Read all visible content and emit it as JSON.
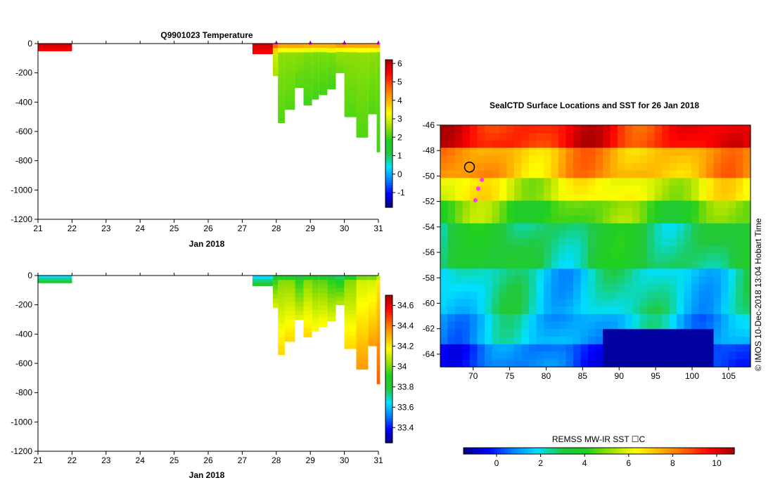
{
  "chart_data": [
    {
      "type": "heatmap",
      "title": "Q9901023  Temperature",
      "xlabel": "Jan 2018",
      "ylabel": "",
      "xlim": [
        21,
        31
      ],
      "ylim": [
        -1200,
        0
      ],
      "x_ticks": [
        "21",
        "22",
        "23",
        "24",
        "25",
        "26",
        "27",
        "28",
        "29",
        "30",
        "31"
      ],
      "y_ticks": [
        "0",
        "-200",
        "-400",
        "-600",
        "-800",
        "-1000",
        "-1200"
      ],
      "colorbar": {
        "min": -1.8,
        "max": 6.2,
        "ticks": [
          "6",
          "5",
          "4",
          "3",
          "2",
          "1",
          "0",
          "-1"
        ]
      },
      "profile_markers_x": [
        28.0,
        29.0,
        30.0,
        31.0
      ],
      "profiles": [
        {
          "x0": 21.0,
          "x1": 22.0,
          "max_depth": 50,
          "value": 5.8
        },
        {
          "x0": 27.3,
          "x1": 27.9,
          "max_depth": 70,
          "value": 5.8
        },
        {
          "x0": 27.9,
          "x1": 28.05,
          "max_depth": 220,
          "value": 3.0
        },
        {
          "x0": 28.05,
          "x1": 28.25,
          "max_depth": 540,
          "value": 2.5
        },
        {
          "x0": 28.25,
          "x1": 28.55,
          "max_depth": 450,
          "value": 2.5
        },
        {
          "x0": 28.55,
          "x1": 28.8,
          "max_depth": 300,
          "value": 2.5
        },
        {
          "x0": 28.8,
          "x1": 29.05,
          "max_depth": 420,
          "value": 2.4
        },
        {
          "x0": 29.05,
          "x1": 29.25,
          "max_depth": 380,
          "value": 2.4
        },
        {
          "x0": 29.25,
          "x1": 29.5,
          "max_depth": 350,
          "value": 2.4
        },
        {
          "x0": 29.5,
          "x1": 29.75,
          "max_depth": 310,
          "value": 2.4
        },
        {
          "x0": 29.75,
          "x1": 30.0,
          "max_depth": 200,
          "value": 2.6
        },
        {
          "x0": 30.0,
          "x1": 30.35,
          "max_depth": 500,
          "value": 2.5
        },
        {
          "x0": 30.35,
          "x1": 30.7,
          "max_depth": 640,
          "value": 2.5
        },
        {
          "x0": 30.7,
          "x1": 30.95,
          "max_depth": 480,
          "value": 2.5
        },
        {
          "x0": 30.95,
          "x1": 31.05,
          "max_depth": 740,
          "value": 2.4
        }
      ]
    },
    {
      "type": "heatmap",
      "title": "",
      "xlabel": "Jan 2018",
      "ylabel": "",
      "xlim": [
        21,
        31
      ],
      "ylim": [
        -1200,
        0
      ],
      "x_ticks": [
        "21",
        "22",
        "23",
        "24",
        "25",
        "26",
        "27",
        "28",
        "29",
        "30",
        "31"
      ],
      "y_ticks": [
        "0",
        "-200",
        "-400",
        "-600",
        "-800",
        "-1000",
        "-1200"
      ],
      "colorbar": {
        "min": 33.25,
        "max": 34.7,
        "ticks": [
          "34.6",
          "34.4",
          "34.2",
          "34",
          "33.8",
          "33.6",
          "33.4"
        ]
      },
      "profiles": [
        {
          "x0": 21.0,
          "x1": 22.0,
          "max_depth": 50,
          "value": 33.65
        },
        {
          "x0": 27.3,
          "x1": 27.9,
          "max_depth": 70,
          "value": 33.65
        },
        {
          "x0": 27.9,
          "x1": 28.05,
          "max_depth": 220,
          "value": 33.9
        },
        {
          "x0": 28.05,
          "x1": 28.25,
          "max_depth": 540,
          "value": 34.0
        },
        {
          "x0": 28.25,
          "x1": 28.55,
          "max_depth": 450,
          "value": 34.0
        },
        {
          "x0": 28.55,
          "x1": 28.8,
          "max_depth": 300,
          "value": 33.9
        },
        {
          "x0": 28.8,
          "x1": 29.05,
          "max_depth": 420,
          "value": 34.0
        },
        {
          "x0": 29.05,
          "x1": 29.25,
          "max_depth": 380,
          "value": 33.95
        },
        {
          "x0": 29.25,
          "x1": 29.5,
          "max_depth": 350,
          "value": 33.95
        },
        {
          "x0": 29.5,
          "x1": 29.75,
          "max_depth": 310,
          "value": 33.9
        },
        {
          "x0": 29.75,
          "x1": 30.0,
          "max_depth": 200,
          "value": 33.85
        },
        {
          "x0": 30.0,
          "x1": 30.35,
          "max_depth": 500,
          "value": 34.0
        },
        {
          "x0": 30.35,
          "x1": 30.7,
          "max_depth": 640,
          "value": 34.1
        },
        {
          "x0": 30.7,
          "x1": 30.95,
          "max_depth": 480,
          "value": 34.1
        },
        {
          "x0": 30.95,
          "x1": 31.05,
          "max_depth": 740,
          "value": 34.2
        }
      ]
    },
    {
      "type": "heatmap",
      "title": "SealCTD Surface Locations and SST for 26 Jan 2018",
      "xlabel": "",
      "ylabel": "",
      "xlim": [
        65.5,
        108
      ],
      "ylim": [
        -65,
        -46
      ],
      "x_ticks": [
        "70",
        "75",
        "80",
        "85",
        "90",
        "95",
        "100",
        "105"
      ],
      "y_ticks": [
        "-46",
        "-48",
        "-50",
        "-52",
        "-54",
        "-56",
        "-58",
        "-60",
        "-62",
        "-64"
      ],
      "sst_bands_by_latitude": [
        {
          "lat_top": -46.0,
          "lat_bottom": -48.0,
          "sst": 9.5
        },
        {
          "lat_top": -48.0,
          "lat_bottom": -50.0,
          "sst": 7.5
        },
        {
          "lat_top": -50.0,
          "lat_bottom": -52.0,
          "sst": 6.0
        },
        {
          "lat_top": -52.0,
          "lat_bottom": -54.0,
          "sst": 4.5
        },
        {
          "lat_top": -54.0,
          "lat_bottom": -57.0,
          "sst": 3.0
        },
        {
          "lat_top": -57.0,
          "lat_bottom": -61.0,
          "sst": 2.0
        },
        {
          "lat_top": -61.0,
          "lat_bottom": -63.0,
          "sst": 1.5
        },
        {
          "lat_top": -63.0,
          "lat_bottom": -65.0,
          "sst": 0.5
        }
      ],
      "seal_locations": [
        {
          "lon": 69.5,
          "lat": -49.3
        },
        {
          "lon": 71.2,
          "lat": -50.3
        },
        {
          "lon": 70.7,
          "lat": -51.0
        },
        {
          "lon": 70.3,
          "lat": -51.9
        }
      ],
      "colorbar": {
        "label": "REMSS MW-IR SST ☐C",
        "min": -1.5,
        "max": 10.8,
        "ticks": [
          "0",
          "2",
          "4",
          "6",
          "8",
          "10"
        ]
      },
      "side_label": "©  IMOS 10-Dec-2018 13:04 Hobart Time"
    }
  ],
  "colors": {
    "jet": [
      "#00007f",
      "#0000ff",
      "#0080ff",
      "#00e0ff",
      "#22c83c",
      "#20d020",
      "#a0e000",
      "#ffff00",
      "#ffb000",
      "#ff6000",
      "#ff0000",
      "#a00000"
    ],
    "marker": "#ff33ff"
  }
}
